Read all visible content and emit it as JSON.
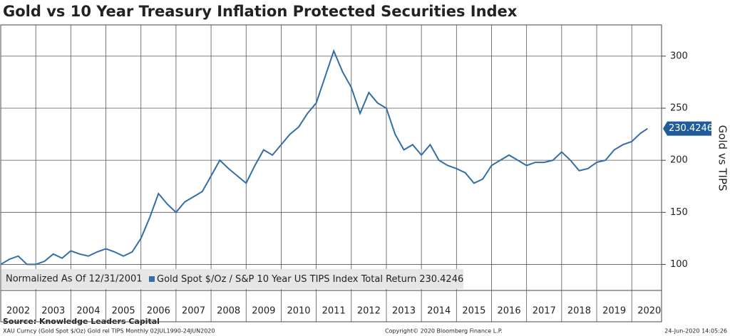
{
  "chart_data": {
    "type": "line",
    "title": "Gold vs 10 Year Treasury Inflation Protected Securities Index",
    "y_axis_label": "Gold vs TIPS",
    "note": "Normalized As Of 12/31/2001",
    "source": "Source: Knowledge Leaders Capital",
    "footer_left": "XAU Curncy (Gold Spot  $/Oz) Gold rel TIPS  Monthly 02JUL1990-24JUN2020",
    "copyright": "Copyright© 2020 Bloomberg Finance L.P.",
    "timestamp": "24-Jun-2020 14:05:26",
    "x": [
      2002,
      2002.25,
      2002.5,
      2002.75,
      2003,
      2003.25,
      2003.5,
      2003.75,
      2004,
      2004.25,
      2004.5,
      2004.75,
      2005,
      2005.25,
      2005.5,
      2005.75,
      2006,
      2006.25,
      2006.5,
      2006.75,
      2007,
      2007.25,
      2007.5,
      2007.75,
      2008,
      2008.25,
      2008.5,
      2008.75,
      2009,
      2009.25,
      2009.5,
      2009.75,
      2010,
      2010.25,
      2010.5,
      2010.75,
      2011,
      2011.25,
      2011.5,
      2011.75,
      2012,
      2012.25,
      2012.5,
      2012.75,
      2013,
      2013.25,
      2013.5,
      2013.75,
      2014,
      2014.25,
      2014.5,
      2014.75,
      2015,
      2015.25,
      2015.5,
      2015.75,
      2016,
      2016.25,
      2016.5,
      2016.75,
      2017,
      2017.25,
      2017.5,
      2017.75,
      2018,
      2018.25,
      2018.5,
      2018.75,
      2019,
      2019.25,
      2019.5,
      2019.75,
      2020,
      2020.25,
      2020.45
    ],
    "series": [
      {
        "name": "Gold Spot $/Oz / S&P 10 Year US TIPS Index Total Return",
        "color": "#336ea6",
        "values": [
          100,
          105,
          108,
          100,
          100,
          103,
          110,
          106,
          113,
          110,
          108,
          112,
          115,
          112,
          108,
          112,
          125,
          145,
          168,
          158,
          150,
          160,
          165,
          170,
          185,
          200,
          192,
          185,
          178,
          195,
          210,
          205,
          215,
          225,
          232,
          245,
          255,
          280,
          305,
          285,
          270,
          245,
          265,
          255,
          250,
          225,
          210,
          215,
          205,
          215,
          200,
          195,
          192,
          188,
          178,
          182,
          195,
          200,
          205,
          200,
          195,
          198,
          198,
          200,
          208,
          200,
          190,
          192,
          198,
          200,
          210,
          215,
          218,
          226,
          230.4246
        ]
      }
    ],
    "xlim": [
      2002,
      2020.85
    ],
    "xticks": [
      2002,
      2003,
      2004,
      2005,
      2006,
      2007,
      2008,
      2009,
      2010,
      2011,
      2012,
      2013,
      2014,
      2015,
      2016,
      2017,
      2018,
      2019,
      2020
    ],
    "ylim": [
      75,
      330
    ],
    "yticks": [
      100,
      150,
      200,
      250,
      300
    ],
    "grid": true
  }
}
